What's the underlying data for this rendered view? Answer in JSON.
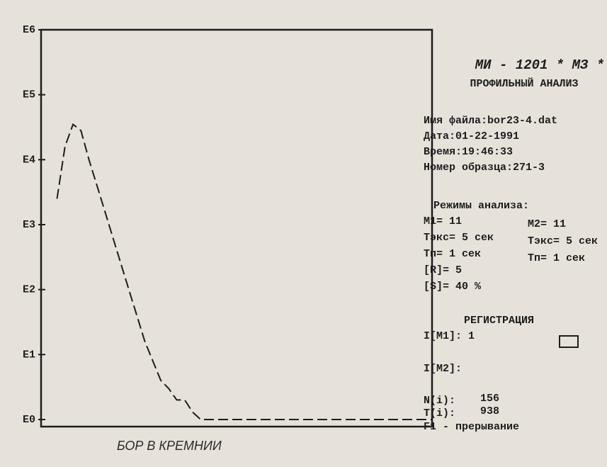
{
  "chart_data": {
    "type": "line",
    "log_y": true,
    "color": "#1d1d1d",
    "dashed": true,
    "ylim": [
      1,
      1000000
    ],
    "yticks": [
      {
        "value": 1,
        "label": "E0"
      },
      {
        "value": 10,
        "label": "E1"
      },
      {
        "value": 100,
        "label": "E2"
      },
      {
        "value": 1000,
        "label": "E3"
      },
      {
        "value": 10000,
        "label": "E4"
      },
      {
        "value": 100000,
        "label": "E5"
      },
      {
        "value": 1000000,
        "label": "E6"
      }
    ],
    "values": [
      null,
      null,
      2500,
      16000,
      35000,
      28000,
      10000,
      4000,
      1600,
      630,
      250,
      100,
      40,
      16,
      8,
      4,
      3,
      2,
      2,
      1.3,
      1,
      1,
      1,
      1,
      1,
      1,
      1,
      1,
      1,
      1,
      1,
      1,
      1,
      1,
      1,
      1,
      1,
      1,
      1,
      1,
      1,
      1,
      1,
      1,
      1,
      1,
      1,
      1,
      1,
      1
    ]
  },
  "header": {
    "title": "МИ - 1201 * МЗ *",
    "subtitle": "ПРОФИЛЬНЫЙ АНАЛИЗ"
  },
  "info": [
    "Имя файла:bor23-4.dat",
    "Дата:01-22-1991",
    "Время:19:46:33",
    "Номер образца:271-3"
  ],
  "modes": {
    "title": "Режимы анализа:",
    "left": [
      "M1= 11",
      "Тэкс= 5 сек",
      "Тп= 1 сек",
      "[R]= 5",
      "[S]= 40 %"
    ],
    "right": [
      "M2= 11",
      "Тэкс= 5 сек",
      "Тп= 1 сек"
    ]
  },
  "registration": {
    "title": "РЕГИСТРАЦИЯ",
    "i_m1": "I[M1]:  1",
    "i_m2": "I[M2]:"
  },
  "counters": {
    "n_label": "N(i):",
    "n": 156,
    "t_label": "T(i):",
    "t": 938
  },
  "footer": "F1 - прерывание",
  "caption": "БОР В КРЕМНИИ"
}
